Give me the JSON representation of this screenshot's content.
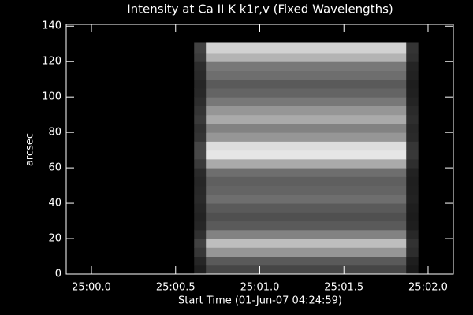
{
  "chart_data": {
    "type": "heatmap",
    "title": "Intensity at Ca II K k1r,v (Fixed Wavelengths)",
    "x_label": "Start Time (01-Jun-07 04:24:59)",
    "y_label": "arcsec",
    "x_edges": [
      1500.61,
      1500.68,
      1501.87,
      1501.94
    ],
    "y_edges": [
      0,
      5,
      10,
      15,
      20,
      25,
      30,
      35,
      40,
      45,
      50,
      55,
      60,
      65,
      70,
      75,
      80,
      85,
      90,
      95,
      100,
      105,
      110,
      115,
      120,
      125,
      131
    ],
    "values": [
      [
        30,
        70,
        25
      ],
      [
        38,
        90,
        30
      ],
      [
        55,
        150,
        45
      ],
      [
        65,
        190,
        50
      ],
      [
        48,
        130,
        40
      ],
      [
        38,
        90,
        30
      ],
      [
        35,
        80,
        28
      ],
      [
        38,
        90,
        30
      ],
      [
        42,
        110,
        34
      ],
      [
        40,
        100,
        32
      ],
      [
        38,
        95,
        31
      ],
      [
        42,
        110,
        34
      ],
      [
        58,
        170,
        46
      ],
      [
        72,
        230,
        56
      ],
      [
        70,
        220,
        54
      ],
      [
        52,
        150,
        42
      ],
      [
        48,
        130,
        40
      ],
      [
        58,
        170,
        46
      ],
      [
        52,
        150,
        42
      ],
      [
        45,
        120,
        36
      ],
      [
        40,
        100,
        32
      ],
      [
        38,
        90,
        30
      ],
      [
        42,
        110,
        34
      ],
      [
        45,
        120,
        36
      ],
      [
        60,
        180,
        48
      ],
      [
        66,
        210,
        52
      ]
    ],
    "zlim": [
      0,
      255
    ],
    "xlim": [
      1499.85,
      1502.15
    ],
    "ylim": [
      0,
      141
    ],
    "xticks": [
      {
        "value": 1500,
        "label": "25:00.0"
      },
      {
        "value": 1500.5,
        "label": "25:00.5"
      },
      {
        "value": 1501,
        "label": "25:01.0"
      },
      {
        "value": 1501.5,
        "label": "25:01.5"
      },
      {
        "value": 1502,
        "label": "25:02.0"
      }
    ],
    "yticks": [
      0,
      20,
      40,
      60,
      80,
      100,
      120,
      140
    ]
  }
}
